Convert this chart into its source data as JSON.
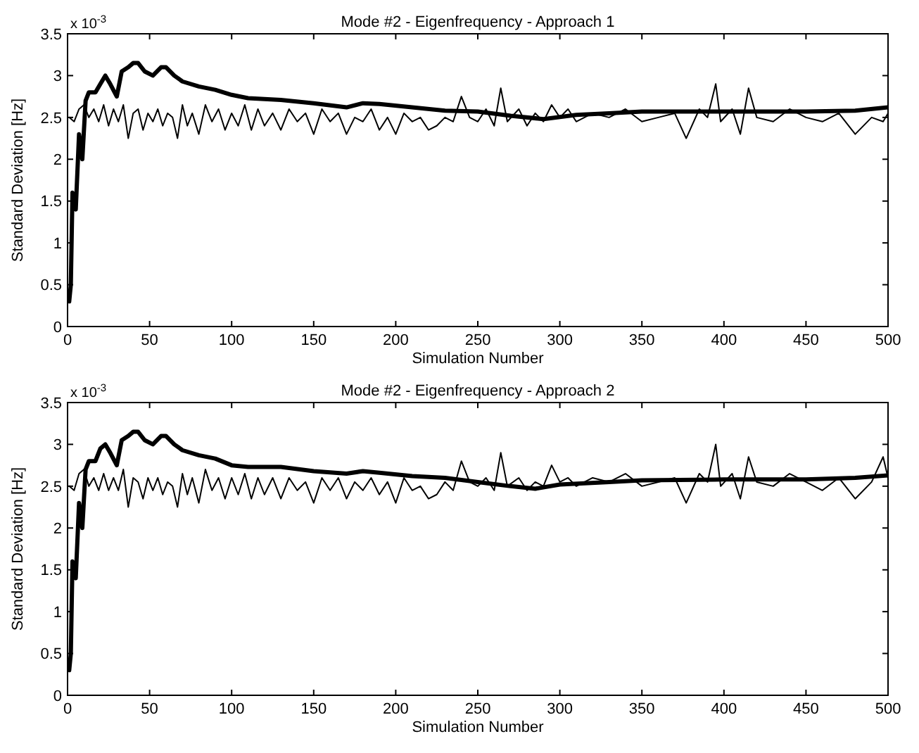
{
  "chart_data": [
    {
      "type": "line",
      "title": "Mode #2 - Eigenfrequency - Approach 1",
      "xlabel": "Simulation Number",
      "ylabel": "Standard Deviation [Hz]",
      "annotations": [
        "x 10$^{-3}$"
      ],
      "xlim": [
        0,
        500
      ],
      "xticks": [
        0,
        50,
        100,
        150,
        200,
        250,
        300,
        350,
        400,
        450,
        500
      ],
      "ylim": [
        0,
        3.5
      ],
      "yticks": [
        0,
        0.5,
        1,
        1.5,
        2,
        2.5,
        3,
        3.5
      ],
      "grid": false,
      "line_style": "solid",
      "series": [
        {
          "color": "#000000",
          "x": [
            1,
            2,
            3,
            5,
            7,
            9,
            11,
            13,
            17,
            20,
            23,
            26,
            30,
            33,
            37,
            40,
            43,
            47,
            52,
            57,
            60,
            65,
            70,
            80,
            90,
            100,
            110,
            130,
            150,
            170,
            180,
            190,
            210,
            230,
            250,
            270,
            290,
            310,
            330,
            350,
            400,
            450,
            480,
            500
          ],
          "values": [
            0.3,
            0.5,
            1.6,
            1.4,
            2.3,
            2.0,
            2.7,
            2.8,
            2.8,
            2.9,
            3.0,
            2.9,
            2.75,
            3.05,
            3.1,
            3.15,
            3.15,
            3.05,
            3.0,
            3.1,
            3.1,
            3.0,
            2.93,
            2.87,
            2.83,
            2.77,
            2.73,
            2.71,
            2.67,
            2.62,
            2.67,
            2.66,
            2.62,
            2.58,
            2.57,
            2.52,
            2.48,
            2.53,
            2.55,
            2.57,
            2.57,
            2.57,
            2.58,
            2.62
          ]
        },
        {
          "color": "#000000",
          "x": [
            1,
            4,
            7,
            10,
            13,
            16,
            19,
            22,
            25,
            28,
            31,
            34,
            37,
            40,
            43,
            46,
            49,
            52,
            55,
            58,
            61,
            64,
            67,
            70,
            73,
            76,
            80,
            84,
            88,
            92,
            96,
            100,
            104,
            108,
            112,
            116,
            120,
            125,
            130,
            135,
            140,
            145,
            150,
            155,
            160,
            165,
            170,
            175,
            180,
            185,
            190,
            195,
            200,
            205,
            210,
            215,
            220,
            225,
            230,
            235,
            240,
            245,
            250,
            255,
            260,
            264,
            268,
            275,
            280,
            285,
            290,
            295,
            300,
            305,
            310,
            320,
            330,
            340,
            350,
            360,
            370,
            377,
            385,
            390,
            395,
            398,
            405,
            410,
            415,
            420,
            430,
            440,
            450,
            460,
            470,
            480,
            490,
            497,
            500
          ],
          "values": [
            2.5,
            2.45,
            2.6,
            2.65,
            2.5,
            2.6,
            2.45,
            2.65,
            2.4,
            2.6,
            2.45,
            2.65,
            2.25,
            2.55,
            2.6,
            2.35,
            2.55,
            2.45,
            2.6,
            2.4,
            2.55,
            2.5,
            2.25,
            2.65,
            2.4,
            2.55,
            2.3,
            2.65,
            2.45,
            2.6,
            2.35,
            2.55,
            2.4,
            2.65,
            2.35,
            2.6,
            2.4,
            2.55,
            2.35,
            2.6,
            2.45,
            2.55,
            2.3,
            2.6,
            2.45,
            2.55,
            2.3,
            2.5,
            2.45,
            2.6,
            2.35,
            2.5,
            2.3,
            2.55,
            2.45,
            2.5,
            2.35,
            2.4,
            2.5,
            2.45,
            2.75,
            2.5,
            2.45,
            2.6,
            2.4,
            2.85,
            2.45,
            2.6,
            2.4,
            2.55,
            2.45,
            2.65,
            2.5,
            2.6,
            2.45,
            2.55,
            2.5,
            2.6,
            2.45,
            2.5,
            2.55,
            2.25,
            2.6,
            2.5,
            2.9,
            2.45,
            2.6,
            2.3,
            2.85,
            2.5,
            2.45,
            2.6,
            2.5,
            2.45,
            2.55,
            2.3,
            2.5,
            2.45,
            2.55
          ]
        }
      ]
    },
    {
      "type": "line",
      "title": "Mode #2 - Eigenfrequency - Approach 2",
      "xlabel": "Simulation Number",
      "ylabel": "Standard Deviation [Hz]",
      "annotations": [
        "x 10$^{-3}$"
      ],
      "xlim": [
        0,
        500
      ],
      "xticks": [
        0,
        50,
        100,
        150,
        200,
        250,
        300,
        350,
        400,
        450,
        500
      ],
      "ylim": [
        0,
        3.5
      ],
      "yticks": [
        0,
        0.5,
        1,
        1.5,
        2,
        2.5,
        3,
        3.5
      ],
      "grid": false,
      "line_style": "solid",
      "series": [
        {
          "color": "#000000",
          "x": [
            1,
            2,
            3,
            5,
            7,
            9,
            11,
            13,
            17,
            20,
            23,
            26,
            30,
            33,
            37,
            40,
            43,
            47,
            52,
            57,
            60,
            65,
            70,
            80,
            90,
            100,
            110,
            130,
            150,
            170,
            180,
            190,
            210,
            230,
            250,
            270,
            285,
            300,
            330,
            350,
            400,
            450,
            480,
            500
          ],
          "values": [
            0.3,
            0.5,
            1.6,
            1.4,
            2.3,
            2.0,
            2.7,
            2.8,
            2.8,
            2.95,
            3.0,
            2.9,
            2.75,
            3.05,
            3.1,
            3.15,
            3.15,
            3.05,
            3.0,
            3.1,
            3.1,
            3.0,
            2.93,
            2.87,
            2.83,
            2.75,
            2.73,
            2.73,
            2.68,
            2.65,
            2.68,
            2.66,
            2.62,
            2.6,
            2.55,
            2.5,
            2.47,
            2.52,
            2.55,
            2.57,
            2.58,
            2.58,
            2.6,
            2.63
          ]
        },
        {
          "color": "#000000",
          "x": [
            1,
            4,
            7,
            10,
            13,
            16,
            19,
            22,
            25,
            28,
            31,
            34,
            37,
            40,
            43,
            46,
            49,
            52,
            55,
            58,
            61,
            64,
            67,
            70,
            73,
            76,
            80,
            84,
            88,
            92,
            96,
            100,
            104,
            108,
            112,
            116,
            120,
            125,
            130,
            135,
            140,
            145,
            150,
            155,
            160,
            165,
            170,
            175,
            180,
            185,
            190,
            195,
            200,
            205,
            210,
            215,
            220,
            225,
            230,
            235,
            240,
            245,
            250,
            255,
            260,
            264,
            268,
            275,
            280,
            285,
            290,
            295,
            300,
            305,
            310,
            320,
            330,
            340,
            350,
            360,
            370,
            377,
            385,
            390,
            395,
            398,
            405,
            410,
            415,
            420,
            430,
            440,
            450,
            460,
            470,
            480,
            490,
            497,
            500
          ],
          "values": [
            2.5,
            2.45,
            2.65,
            2.7,
            2.5,
            2.6,
            2.45,
            2.65,
            2.45,
            2.6,
            2.45,
            2.7,
            2.25,
            2.6,
            2.55,
            2.35,
            2.6,
            2.45,
            2.6,
            2.4,
            2.55,
            2.5,
            2.25,
            2.65,
            2.4,
            2.6,
            2.3,
            2.7,
            2.45,
            2.6,
            2.35,
            2.6,
            2.4,
            2.65,
            2.35,
            2.6,
            2.4,
            2.6,
            2.35,
            2.6,
            2.45,
            2.55,
            2.3,
            2.6,
            2.45,
            2.6,
            2.35,
            2.55,
            2.45,
            2.6,
            2.4,
            2.55,
            2.3,
            2.6,
            2.45,
            2.5,
            2.35,
            2.4,
            2.55,
            2.45,
            2.8,
            2.55,
            2.5,
            2.6,
            2.45,
            2.9,
            2.5,
            2.6,
            2.45,
            2.55,
            2.5,
            2.75,
            2.55,
            2.6,
            2.5,
            2.6,
            2.55,
            2.65,
            2.5,
            2.55,
            2.6,
            2.3,
            2.65,
            2.55,
            3.0,
            2.5,
            2.65,
            2.35,
            2.85,
            2.55,
            2.5,
            2.65,
            2.55,
            2.45,
            2.6,
            2.35,
            2.55,
            2.85,
            2.6
          ]
        }
      ]
    }
  ]
}
